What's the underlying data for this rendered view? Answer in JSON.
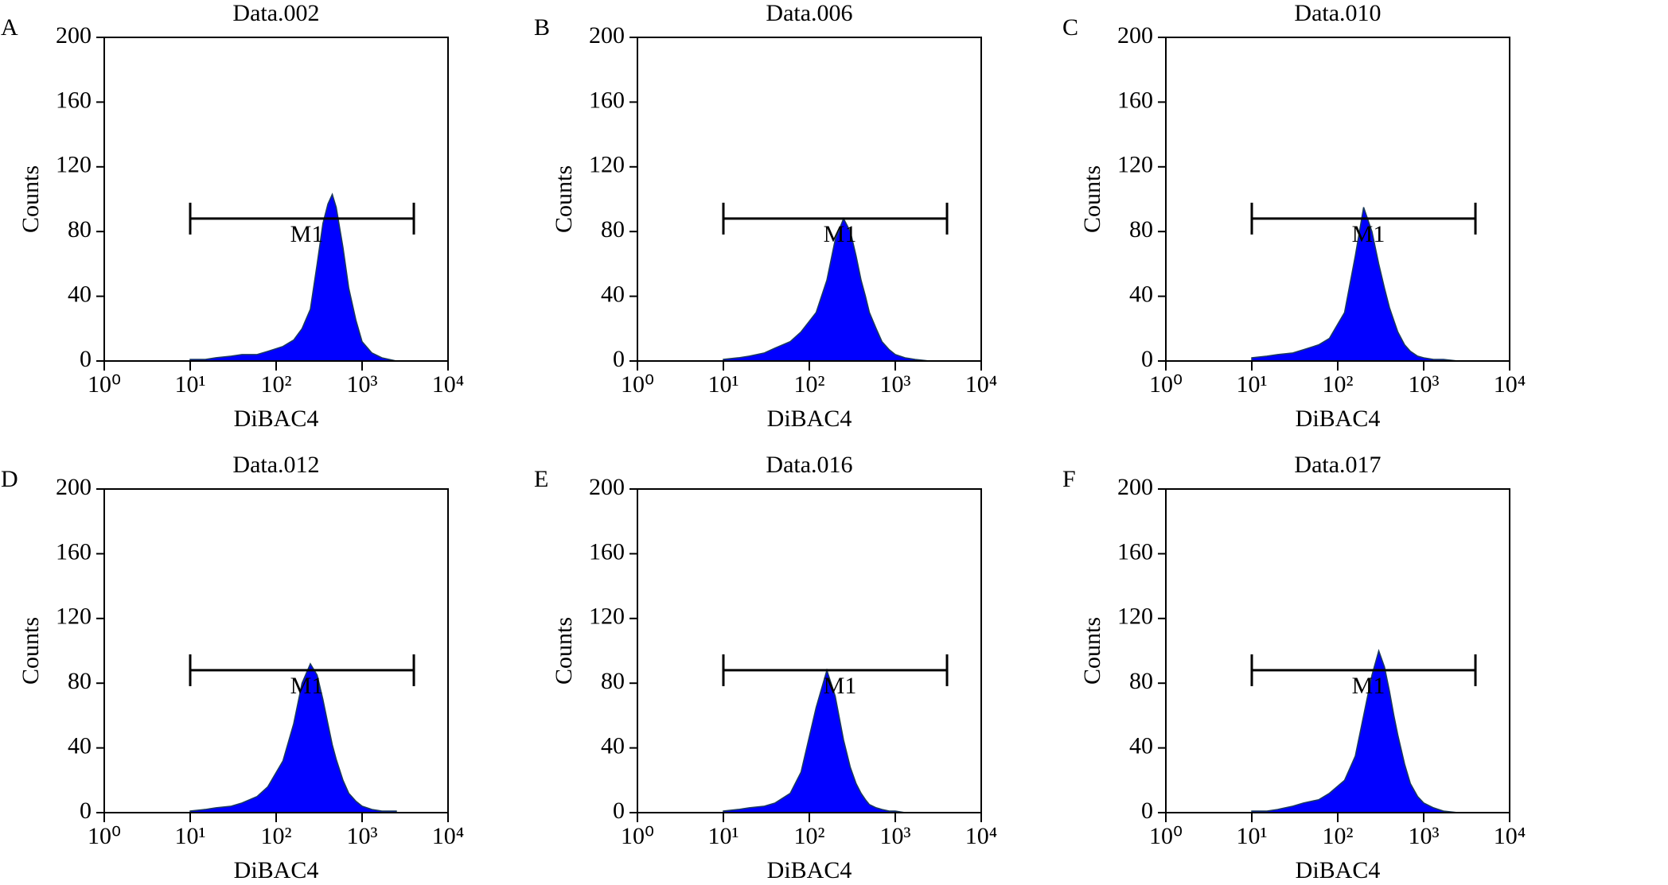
{
  "chart_data": [
    {
      "type": "area",
      "label": "A",
      "title": "Data.002",
      "xlabel": "DiBAC4",
      "ylabel": "Counts",
      "color": "#0000ff",
      "xscale": "log",
      "x": [
        10,
        15,
        20,
        30,
        40,
        60,
        80,
        120,
        160,
        200,
        250,
        300,
        350,
        400,
        450,
        500,
        600,
        700,
        850,
        1000,
        1300,
        1700,
        2500
      ],
      "values": [
        1,
        1,
        2,
        3,
        4,
        4,
        6,
        9,
        13,
        20,
        32,
        60,
        85,
        97,
        103,
        95,
        70,
        45,
        25,
        12,
        5,
        2,
        0
      ],
      "xlim": [
        1,
        10000
      ],
      "ylim": [
        0,
        200
      ],
      "xticks": [
        {
          "value": 1,
          "label": "10⁰"
        },
        {
          "value": 10,
          "label": "10¹"
        },
        {
          "value": 100,
          "label": "10²"
        },
        {
          "value": 1000,
          "label": "10³"
        },
        {
          "value": 10000,
          "label": "10⁴"
        }
      ],
      "yticks": [
        0,
        40,
        80,
        120,
        160,
        200
      ],
      "marker": {
        "label": "M1",
        "range": [
          10,
          4000
        ],
        "y": 88
      }
    },
    {
      "type": "area",
      "label": "B",
      "title": "Data.006",
      "xlabel": "DiBAC4",
      "ylabel": "Counts",
      "color": "#0000ff",
      "xscale": "log",
      "x": [
        10,
        15,
        20,
        30,
        40,
        60,
        80,
        120,
        160,
        200,
        250,
        300,
        350,
        400,
        450,
        500,
        600,
        700,
        850,
        1000,
        1300,
        1700,
        2500
      ],
      "values": [
        1,
        2,
        3,
        5,
        8,
        12,
        18,
        30,
        50,
        75,
        88,
        80,
        65,
        50,
        40,
        30,
        20,
        12,
        7,
        4,
        2,
        1,
        0
      ],
      "xlim": [
        1,
        10000
      ],
      "ylim": [
        0,
        200
      ],
      "xticks": [
        {
          "value": 1,
          "label": "10⁰"
        },
        {
          "value": 10,
          "label": "10¹"
        },
        {
          "value": 100,
          "label": "10²"
        },
        {
          "value": 1000,
          "label": "10³"
        },
        {
          "value": 10000,
          "label": "10⁴"
        }
      ],
      "yticks": [
        0,
        40,
        80,
        120,
        160,
        200
      ],
      "marker": {
        "label": "M1",
        "range": [
          10,
          4000
        ],
        "y": 88
      }
    },
    {
      "type": "area",
      "label": "C",
      "title": "Data.010",
      "xlabel": "DiBAC4",
      "ylabel": "Counts",
      "color": "#0000ff",
      "xscale": "log",
      "x": [
        10,
        15,
        20,
        30,
        40,
        60,
        80,
        120,
        160,
        200,
        250,
        300,
        350,
        400,
        450,
        500,
        600,
        700,
        850,
        1000,
        1300,
        1700,
        2500
      ],
      "values": [
        2,
        3,
        4,
        5,
        7,
        10,
        14,
        30,
        65,
        95,
        80,
        60,
        45,
        33,
        25,
        18,
        10,
        6,
        3,
        2,
        1,
        1,
        0
      ],
      "xlim": [
        1,
        10000
      ],
      "ylim": [
        0,
        200
      ],
      "xticks": [
        {
          "value": 1,
          "label": "10⁰"
        },
        {
          "value": 10,
          "label": "10¹"
        },
        {
          "value": 100,
          "label": "10²"
        },
        {
          "value": 1000,
          "label": "10³"
        },
        {
          "value": 10000,
          "label": "10⁴"
        }
      ],
      "yticks": [
        0,
        40,
        80,
        120,
        160,
        200
      ],
      "marker": {
        "label": "M1",
        "range": [
          10,
          4000
        ],
        "y": 88
      }
    },
    {
      "type": "area",
      "label": "D",
      "title": "Data.012",
      "xlabel": "DiBAC4",
      "ylabel": "Counts",
      "color": "#0000ff",
      "xscale": "log",
      "x": [
        10,
        15,
        20,
        30,
        40,
        60,
        80,
        120,
        160,
        200,
        250,
        300,
        350,
        400,
        450,
        500,
        600,
        700,
        850,
        1000,
        1300,
        1700,
        2500
      ],
      "values": [
        1,
        2,
        3,
        4,
        6,
        10,
        16,
        32,
        55,
        80,
        92,
        85,
        70,
        55,
        42,
        33,
        20,
        12,
        7,
        4,
        2,
        1,
        1
      ],
      "xlim": [
        1,
        10000
      ],
      "ylim": [
        0,
        200
      ],
      "xticks": [
        {
          "value": 1,
          "label": "10⁰"
        },
        {
          "value": 10,
          "label": "10¹"
        },
        {
          "value": 100,
          "label": "10²"
        },
        {
          "value": 1000,
          "label": "10³"
        },
        {
          "value": 10000,
          "label": "10⁴"
        }
      ],
      "yticks": [
        0,
        40,
        80,
        120,
        160,
        200
      ],
      "marker": {
        "label": "M1",
        "range": [
          10,
          4000
        ],
        "y": 88
      }
    },
    {
      "type": "area",
      "label": "E",
      "title": "Data.016",
      "xlabel": "DiBAC4",
      "ylabel": "Counts",
      "color": "#0000ff",
      "xscale": "log",
      "x": [
        10,
        15,
        20,
        30,
        40,
        60,
        80,
        120,
        160,
        200,
        250,
        300,
        350,
        400,
        450,
        500,
        600,
        700,
        850,
        1000,
        1300
      ],
      "values": [
        1,
        2,
        3,
        4,
        6,
        12,
        25,
        65,
        88,
        72,
        45,
        28,
        18,
        12,
        8,
        5,
        3,
        2,
        1,
        1,
        0
      ],
      "xlim": [
        1,
        10000
      ],
      "ylim": [
        0,
        200
      ],
      "xticks": [
        {
          "value": 1,
          "label": "10⁰"
        },
        {
          "value": 10,
          "label": "10¹"
        },
        {
          "value": 100,
          "label": "10²"
        },
        {
          "value": 1000,
          "label": "10³"
        },
        {
          "value": 10000,
          "label": "10⁴"
        }
      ],
      "yticks": [
        0,
        40,
        80,
        120,
        160,
        200
      ],
      "marker": {
        "label": "M1",
        "range": [
          10,
          4000
        ],
        "y": 88
      }
    },
    {
      "type": "area",
      "label": "F",
      "title": "Data.017",
      "xlabel": "DiBAC4",
      "ylabel": "Counts",
      "color": "#0000ff",
      "xscale": "log",
      "x": [
        10,
        15,
        20,
        30,
        40,
        60,
        80,
        120,
        160,
        200,
        250,
        300,
        350,
        400,
        450,
        500,
        600,
        700,
        850,
        1000,
        1300,
        1700,
        2500
      ],
      "values": [
        1,
        1,
        2,
        4,
        6,
        8,
        12,
        20,
        35,
        60,
        85,
        100,
        90,
        75,
        60,
        48,
        30,
        18,
        10,
        6,
        3,
        1,
        0
      ],
      "xlim": [
        1,
        10000
      ],
      "ylim": [
        0,
        200
      ],
      "xticks": [
        {
          "value": 1,
          "label": "10⁰"
        },
        {
          "value": 10,
          "label": "10¹"
        },
        {
          "value": 100,
          "label": "10²"
        },
        {
          "value": 1000,
          "label": "10³"
        },
        {
          "value": 10000,
          "label": "10⁴"
        }
      ],
      "yticks": [
        0,
        40,
        80,
        120,
        160,
        200
      ],
      "marker": {
        "label": "M1",
        "range": [
          10,
          4000
        ],
        "y": 88
      }
    }
  ]
}
